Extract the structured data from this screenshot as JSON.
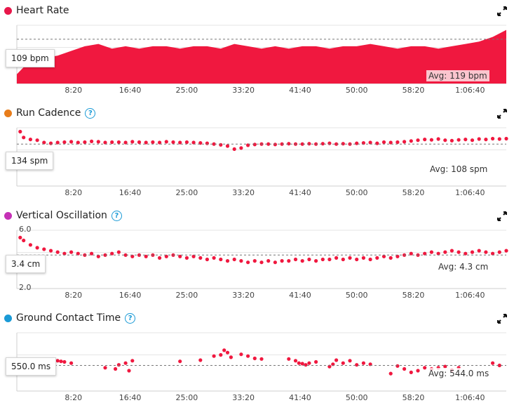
{
  "expand_icon": "expand-arrows-icon",
  "help_icon": "question-circle-icon",
  "time_ticks": [
    "8:20",
    "16:40",
    "25:00",
    "33:20",
    "41:40",
    "50:00",
    "58:20",
    "1:06:40"
  ],
  "colors": {
    "heart_rate": "#e8174a",
    "run_cadence": "#e87d1b",
    "vertical_oscillation": "#c531b6",
    "ground_contact_time": "#1a9ad6",
    "series": "#f0183f",
    "grid": "#e6e6e6"
  },
  "panels": [
    {
      "title": "Heart Rate",
      "help": false,
      "current": "109 bpm",
      "avg": "Avg: 119 bpm"
    },
    {
      "title": "Run Cadence",
      "help": true,
      "current": "134 spm",
      "avg": "Avg: 108 spm"
    },
    {
      "title": "Vertical Oscillation",
      "help": true,
      "current": "3.4 cm",
      "avg": "Avg: 4.3 cm",
      "ymax": "6.0",
      "ymin": "2.0"
    },
    {
      "title": "Ground Contact Time",
      "help": true,
      "current": "550.0 ms",
      "avg": "Avg: 544.0 ms"
    }
  ],
  "chart_data": [
    {
      "type": "area",
      "title": "Heart Rate",
      "x_unit": "minutes",
      "x_range": [
        0,
        72
      ],
      "y_range": [
        100,
        125
      ],
      "avg": 119,
      "x": [
        0,
        2,
        4,
        6,
        8,
        10,
        12,
        14,
        16,
        18,
        20,
        22,
        24,
        26,
        28,
        30,
        32,
        34,
        36,
        38,
        40,
        42,
        44,
        46,
        48,
        50,
        52,
        54,
        56,
        58,
        60,
        62,
        64,
        66,
        68,
        70,
        72
      ],
      "y": [
        104,
        110,
        111,
        112,
        114,
        116,
        117,
        115,
        116,
        115,
        116,
        116,
        115,
        116,
        116,
        115,
        117,
        116,
        115,
        116,
        115,
        116,
        116,
        115,
        116,
        116,
        117,
        116,
        115,
        116,
        116,
        115,
        116,
        117,
        118,
        120,
        123
      ]
    },
    {
      "type": "scatter",
      "title": "Run Cadence",
      "x_unit": "minutes",
      "x_range": [
        0,
        72
      ],
      "y_range": [
        0,
        150
      ],
      "avg": 108,
      "x": [
        0.5,
        1,
        2,
        3,
        4,
        5,
        6,
        7,
        8,
        9,
        10,
        11,
        12,
        13,
        14,
        15,
        16,
        17,
        18,
        19,
        20,
        21,
        22,
        23,
        24,
        25,
        26,
        27,
        28,
        29,
        30,
        31,
        32,
        33,
        34,
        35,
        36,
        37,
        38,
        39,
        40,
        41,
        42,
        43,
        44,
        45,
        46,
        47,
        48,
        49,
        50,
        51,
        52,
        53,
        54,
        55,
        56,
        57,
        58,
        59,
        60,
        61,
        62,
        63,
        64,
        65,
        66,
        67,
        68,
        69,
        70,
        71,
        72
      ],
      "y": [
        140,
        125,
        120,
        118,
        112,
        110,
        112,
        113,
        114,
        112,
        113,
        115,
        114,
        112,
        113,
        113,
        112,
        114,
        113,
        112,
        113,
        112,
        114,
        113,
        112,
        113,
        112,
        111,
        110,
        108,
        106,
        103,
        95,
        98,
        105,
        107,
        108,
        108,
        107,
        108,
        109,
        108,
        108,
        109,
        108,
        109,
        110,
        108,
        109,
        108,
        110,
        111,
        112,
        110,
        113,
        112,
        113,
        114,
        116,
        118,
        120,
        119,
        121,
        118,
        117,
        119,
        120,
        118,
        121,
        120,
        122,
        121,
        122
      ]
    },
    {
      "type": "scatter",
      "title": "Vertical Oscillation",
      "x_unit": "minutes",
      "x_range": [
        0,
        72
      ],
      "y_range": [
        2.0,
        6.0
      ],
      "avg": 4.3,
      "x": [
        0.5,
        1,
        2,
        3,
        4,
        5,
        6,
        7,
        8,
        9,
        10,
        11,
        12,
        13,
        14,
        15,
        16,
        17,
        18,
        19,
        20,
        21,
        22,
        23,
        24,
        25,
        26,
        27,
        28,
        29,
        30,
        31,
        32,
        33,
        34,
        35,
        36,
        37,
        38,
        39,
        40,
        41,
        42,
        43,
        44,
        45,
        46,
        47,
        48,
        49,
        50,
        51,
        52,
        53,
        54,
        55,
        56,
        57,
        58,
        59,
        60,
        61,
        62,
        63,
        64,
        65,
        66,
        67,
        68,
        69,
        70,
        71,
        72
      ],
      "y": [
        5.5,
        5.3,
        5.0,
        4.8,
        4.7,
        4.6,
        4.5,
        4.4,
        4.5,
        4.4,
        4.3,
        4.4,
        4.2,
        4.3,
        4.4,
        4.5,
        4.3,
        4.2,
        4.3,
        4.2,
        4.3,
        4.1,
        4.2,
        4.3,
        4.2,
        4.1,
        4.2,
        4.1,
        4.0,
        4.1,
        4.0,
        3.9,
        4.0,
        3.9,
        3.8,
        3.9,
        3.8,
        3.9,
        3.8,
        3.9,
        3.9,
        4.0,
        3.9,
        4.0,
        3.9,
        4.0,
        4.0,
        4.1,
        4.0,
        4.1,
        4.0,
        4.1,
        4.0,
        4.1,
        4.2,
        4.1,
        4.2,
        4.3,
        4.4,
        4.3,
        4.4,
        4.5,
        4.4,
        4.5,
        4.6,
        4.5,
        4.4,
        4.5,
        4.6,
        4.5,
        4.4,
        4.5,
        4.6
      ]
    },
    {
      "type": "scatter",
      "title": "Ground Contact Time",
      "x_unit": "minutes",
      "x_range": [
        0,
        72
      ],
      "y_range": [
        500,
        600
      ],
      "avg": 544,
      "x": [
        6,
        6.5,
        7,
        8,
        13,
        14.5,
        15,
        16,
        16.5,
        17,
        24,
        27,
        29,
        30,
        30.5,
        31,
        31.5,
        33,
        34,
        35,
        36,
        40,
        41,
        41.5,
        42,
        42.5,
        43,
        44,
        46,
        46.5,
        47,
        48,
        49,
        50,
        51,
        52,
        55,
        56,
        57,
        58,
        59,
        60,
        61,
        62,
        63,
        64,
        65,
        70,
        71
      ],
      "y": [
        552,
        551,
        550,
        548,
        540,
        538,
        545,
        548,
        535,
        552,
        551,
        553,
        560,
        562,
        570,
        566,
        558,
        563,
        560,
        556,
        555,
        555,
        552,
        548,
        547,
        545,
        548,
        550,
        542,
        546,
        553,
        548,
        552,
        545,
        548,
        546,
        530,
        543,
        538,
        532,
        535,
        540,
        538,
        540,
        542,
        536,
        540,
        548,
        544
      ]
    }
  ]
}
